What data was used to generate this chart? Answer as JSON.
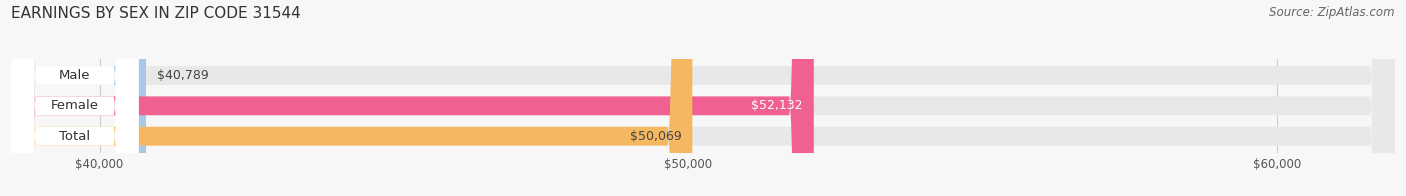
{
  "title": "EARNINGS BY SEX IN ZIP CODE 31544",
  "source": "Source: ZipAtlas.com",
  "categories": [
    "Male",
    "Female",
    "Total"
  ],
  "values": [
    40789,
    52132,
    50069
  ],
  "bar_colors": [
    "#a8c8e8",
    "#f06090",
    "#f5b860"
  ],
  "value_label_inside": [
    false,
    true,
    true
  ],
  "value_label_colors_inside": [
    "#ffffff",
    "#ffffff",
    "#444444"
  ],
  "value_label_colors_outside": [
    "#444444",
    "#444444",
    "#444444"
  ],
  "x_min": 38500,
  "x_max": 62000,
  "x_ticks": [
    40000,
    50000,
    60000
  ],
  "x_tick_labels": [
    "$40,000",
    "$50,000",
    "$60,000"
  ],
  "bar_height": 0.62,
  "bg_color": "#f7f7f7",
  "bar_bg_color": "#e8e8e8",
  "title_fontsize": 11,
  "source_fontsize": 8.5,
  "label_fontsize": 9.5,
  "value_fontsize": 9
}
